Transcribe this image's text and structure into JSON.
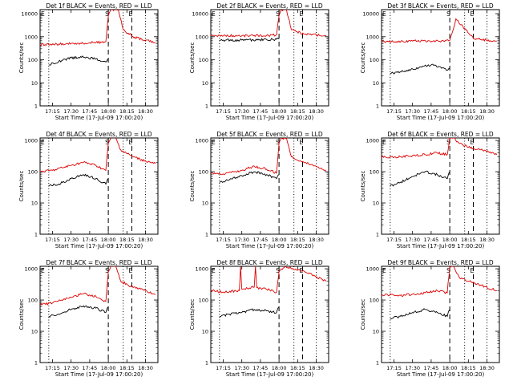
{
  "figure": {
    "ylabel": "Counts/sec",
    "xlabel": "Start Time (17-Jul-09 17:00:20)",
    "x_ticks": [
      "17:15",
      "17:30",
      "17:45",
      "18:00",
      "18:15",
      "18:30"
    ],
    "y_ticks": [
      "1",
      "10",
      "100",
      "1000",
      "10000"
    ],
    "colors": {
      "events": "#000000",
      "lld": "#dd0000",
      "axes": "#000000"
    },
    "markers": {
      "left": "E",
      "mid": "S",
      "right": "E"
    }
  },
  "chart_data": [
    {
      "type": "line",
      "title": "Det 1f BLACK = Events, RED = LLD",
      "ylim": [
        1,
        15000
      ],
      "xlim": [
        "17:05",
        "18:40"
      ],
      "dashed_lines": [
        "18:00",
        "18:19"
      ],
      "dotted_lines": [
        "17:12",
        "18:12",
        "18:30"
      ],
      "series": [
        {
          "name": "Events",
          "color": "#000000",
          "x": [
            "17:12",
            "17:20",
            "17:30",
            "17:40",
            "17:50",
            "17:58",
            "18:00"
          ],
          "values": [
            60,
            85,
            120,
            130,
            110,
            80,
            100
          ]
        },
        {
          "name": "LLD",
          "color": "#dd0000",
          "x": [
            "17:05",
            "17:20",
            "17:35",
            "17:50",
            "17:58",
            "18:00",
            "18:02",
            "18:05",
            "18:08",
            "18:12",
            "18:20",
            "18:30",
            "18:38"
          ],
          "values": [
            450,
            480,
            520,
            560,
            600,
            8000,
            15000,
            15000,
            15000,
            2000,
            1000,
            700,
            550
          ]
        }
      ]
    },
    {
      "type": "line",
      "title": "Det 2f BLACK = Events, RED = LLD",
      "ylim": [
        1,
        15000
      ],
      "xlim": [
        "17:05",
        "18:40"
      ],
      "dashed_lines": [
        "18:00",
        "18:19"
      ],
      "dotted_lines": [
        "17:12",
        "18:12",
        "18:30"
      ],
      "series": [
        {
          "name": "Events",
          "color": "#000000",
          "x": [
            "17:12",
            "17:30",
            "17:50",
            "17:58",
            "18:00"
          ],
          "values": [
            700,
            720,
            750,
            780,
            800
          ]
        },
        {
          "name": "LLD",
          "color": "#dd0000",
          "x": [
            "17:05",
            "17:30",
            "17:50",
            "17:58",
            "18:00",
            "18:02",
            "18:06",
            "18:10",
            "18:20",
            "18:38"
          ],
          "values": [
            1100,
            1100,
            1150,
            1200,
            8000,
            15000,
            15000,
            2000,
            1300,
            1100
          ]
        }
      ]
    },
    {
      "type": "line",
      "title": "Det 3f BLACK = Events, RED = LLD",
      "ylim": [
        1,
        15000
      ],
      "xlim": [
        "17:05",
        "18:40"
      ],
      "dashed_lines": [
        "18:00",
        "18:19"
      ],
      "dotted_lines": [
        "17:12",
        "18:12",
        "18:30"
      ],
      "series": [
        {
          "name": "Events",
          "color": "#000000",
          "x": [
            "17:12",
            "17:20",
            "17:35",
            "17:45",
            "17:55",
            "17:58",
            "18:00"
          ],
          "values": [
            25,
            30,
            45,
            60,
            45,
            35,
            40
          ]
        },
        {
          "name": "LLD",
          "color": "#dd0000",
          "x": [
            "17:05",
            "17:30",
            "17:55",
            "18:00",
            "18:05",
            "18:20",
            "18:38"
          ],
          "values": [
            600,
            650,
            650,
            700,
            6000,
            800,
            650
          ]
        }
      ]
    },
    {
      "type": "line",
      "title": "Det 4f BLACK = Events, RED = LLD",
      "ylim": [
        1,
        1200
      ],
      "xlim": [
        "17:05",
        "18:40"
      ],
      "dashed_lines": [
        "18:00",
        "18:19"
      ],
      "dotted_lines": [
        "17:12",
        "18:12",
        "18:30"
      ],
      "series": [
        {
          "name": "Events",
          "color": "#000000",
          "x": [
            "17:12",
            "17:20",
            "17:30",
            "17:40",
            "17:50",
            "17:58",
            "18:00"
          ],
          "values": [
            35,
            40,
            60,
            80,
            60,
            40,
            60
          ]
        },
        {
          "name": "LLD",
          "color": "#dd0000",
          "x": [
            "17:05",
            "17:15",
            "17:30",
            "17:40",
            "17:50",
            "17:58",
            "18:00",
            "18:02",
            "18:06",
            "18:10",
            "18:20",
            "18:30",
            "18:38"
          ],
          "values": [
            100,
            110,
            160,
            200,
            160,
            110,
            800,
            1200,
            1200,
            500,
            300,
            220,
            180
          ]
        }
      ]
    },
    {
      "type": "line",
      "title": "Det 5f BLACK = Events, RED = LLD",
      "ylim": [
        1,
        1200
      ],
      "xlim": [
        "17:05",
        "18:40"
      ],
      "dashed_lines": [
        "18:00",
        "18:19"
      ],
      "dotted_lines": [
        "17:12",
        "18:12",
        "18:30"
      ],
      "series": [
        {
          "name": "Events",
          "color": "#000000",
          "x": [
            "17:12",
            "17:20",
            "17:30",
            "17:40",
            "17:50",
            "17:58",
            "18:00"
          ],
          "values": [
            45,
            55,
            75,
            100,
            80,
            60,
            80
          ]
        },
        {
          "name": "LLD",
          "color": "#dd0000",
          "x": [
            "17:05",
            "17:15",
            "17:30",
            "17:40",
            "17:50",
            "17:58",
            "18:00",
            "18:02",
            "18:06",
            "18:10",
            "18:20",
            "18:30",
            "18:38"
          ],
          "values": [
            90,
            85,
            110,
            150,
            120,
            90,
            800,
            1200,
            1200,
            300,
            200,
            150,
            110
          ]
        }
      ]
    },
    {
      "type": "line",
      "title": "Det 6f BLACK = Events, RED = LLD",
      "ylim": [
        1,
        1200
      ],
      "xlim": [
        "17:05",
        "18:40"
      ],
      "dashed_lines": [
        "18:00",
        "18:19"
      ],
      "dotted_lines": [
        "17:12",
        "18:12",
        "18:30"
      ],
      "series": [
        {
          "name": "Events",
          "color": "#000000",
          "x": [
            "17:12",
            "17:20",
            "17:30",
            "17:40",
            "17:50",
            "17:58",
            "18:00"
          ],
          "values": [
            35,
            45,
            70,
            100,
            80,
            60,
            100
          ]
        },
        {
          "name": "LLD",
          "color": "#dd0000",
          "x": [
            "17:05",
            "17:20",
            "17:40",
            "17:50",
            "17:58",
            "18:00",
            "18:03",
            "18:08",
            "18:15",
            "18:25",
            "18:38"
          ],
          "values": [
            300,
            300,
            350,
            400,
            350,
            1200,
            1200,
            800,
            600,
            500,
            350
          ]
        }
      ]
    },
    {
      "type": "line",
      "title": "Det 7f BLACK = Events, RED = LLD",
      "ylim": [
        1,
        1200
      ],
      "xlim": [
        "17:05",
        "18:40"
      ],
      "dashed_lines": [
        "18:00",
        "18:19"
      ],
      "dotted_lines": [
        "17:12",
        "18:12",
        "18:30"
      ],
      "series": [
        {
          "name": "Events",
          "color": "#000000",
          "x": [
            "17:12",
            "17:20",
            "17:30",
            "17:40",
            "17:50",
            "17:58",
            "18:00"
          ],
          "values": [
            30,
            35,
            50,
            65,
            55,
            40,
            60
          ]
        },
        {
          "name": "LLD",
          "color": "#dd0000",
          "x": [
            "17:05",
            "17:15",
            "17:30",
            "17:40",
            "17:50",
            "17:58",
            "18:00",
            "18:02",
            "18:06",
            "18:10",
            "18:20",
            "18:30",
            "18:38"
          ],
          "values": [
            70,
            80,
            120,
            160,
            130,
            90,
            800,
            1200,
            1200,
            400,
            250,
            200,
            150
          ]
        }
      ]
    },
    {
      "type": "line",
      "title": "Det 8f BLACK = Events, RED = LLD",
      "ylim": [
        1,
        1200
      ],
      "xlim": [
        "17:05",
        "18:40"
      ],
      "dashed_lines": [
        "18:00",
        "18:19"
      ],
      "dotted_lines": [
        "17:12",
        "18:12",
        "18:30"
      ],
      "series": [
        {
          "name": "Events",
          "color": "#000000",
          "x": [
            "17:12",
            "17:20",
            "17:30",
            "17:40",
            "17:50",
            "17:58",
            "18:00"
          ],
          "values": [
            30,
            35,
            40,
            50,
            45,
            40,
            60
          ]
        },
        {
          "name": "LLD",
          "color": "#dd0000",
          "x": [
            "17:05",
            "17:15",
            "17:28",
            "17:29",
            "17:30",
            "17:40",
            "17:41",
            "17:42",
            "17:50",
            "17:58",
            "18:00",
            "18:05",
            "18:15",
            "18:25",
            "18:38"
          ],
          "values": [
            200,
            180,
            200,
            1200,
            220,
            260,
            1200,
            250,
            220,
            180,
            800,
            1200,
            900,
            700,
            400
          ]
        }
      ]
    },
    {
      "type": "line",
      "title": "Det 9f BLACK = Events, RED = LLD",
      "ylim": [
        1,
        1200
      ],
      "xlim": [
        "17:05",
        "18:40"
      ],
      "dashed_lines": [
        "18:00",
        "18:19"
      ],
      "dotted_lines": [
        "17:12",
        "18:12",
        "18:30"
      ],
      "series": [
        {
          "name": "Events",
          "color": "#000000",
          "x": [
            "17:12",
            "17:20",
            "17:30",
            "17:40",
            "17:50",
            "17:58",
            "18:00"
          ],
          "values": [
            25,
            30,
            40,
            50,
            40,
            30,
            50
          ]
        },
        {
          "name": "LLD",
          "color": "#dd0000",
          "x": [
            "17:05",
            "17:20",
            "17:40",
            "17:50",
            "17:58",
            "18:00",
            "18:03",
            "18:08",
            "18:15",
            "18:25",
            "18:38"
          ],
          "values": [
            150,
            140,
            170,
            200,
            170,
            1200,
            1200,
            500,
            400,
            300,
            200
          ]
        }
      ]
    }
  ]
}
